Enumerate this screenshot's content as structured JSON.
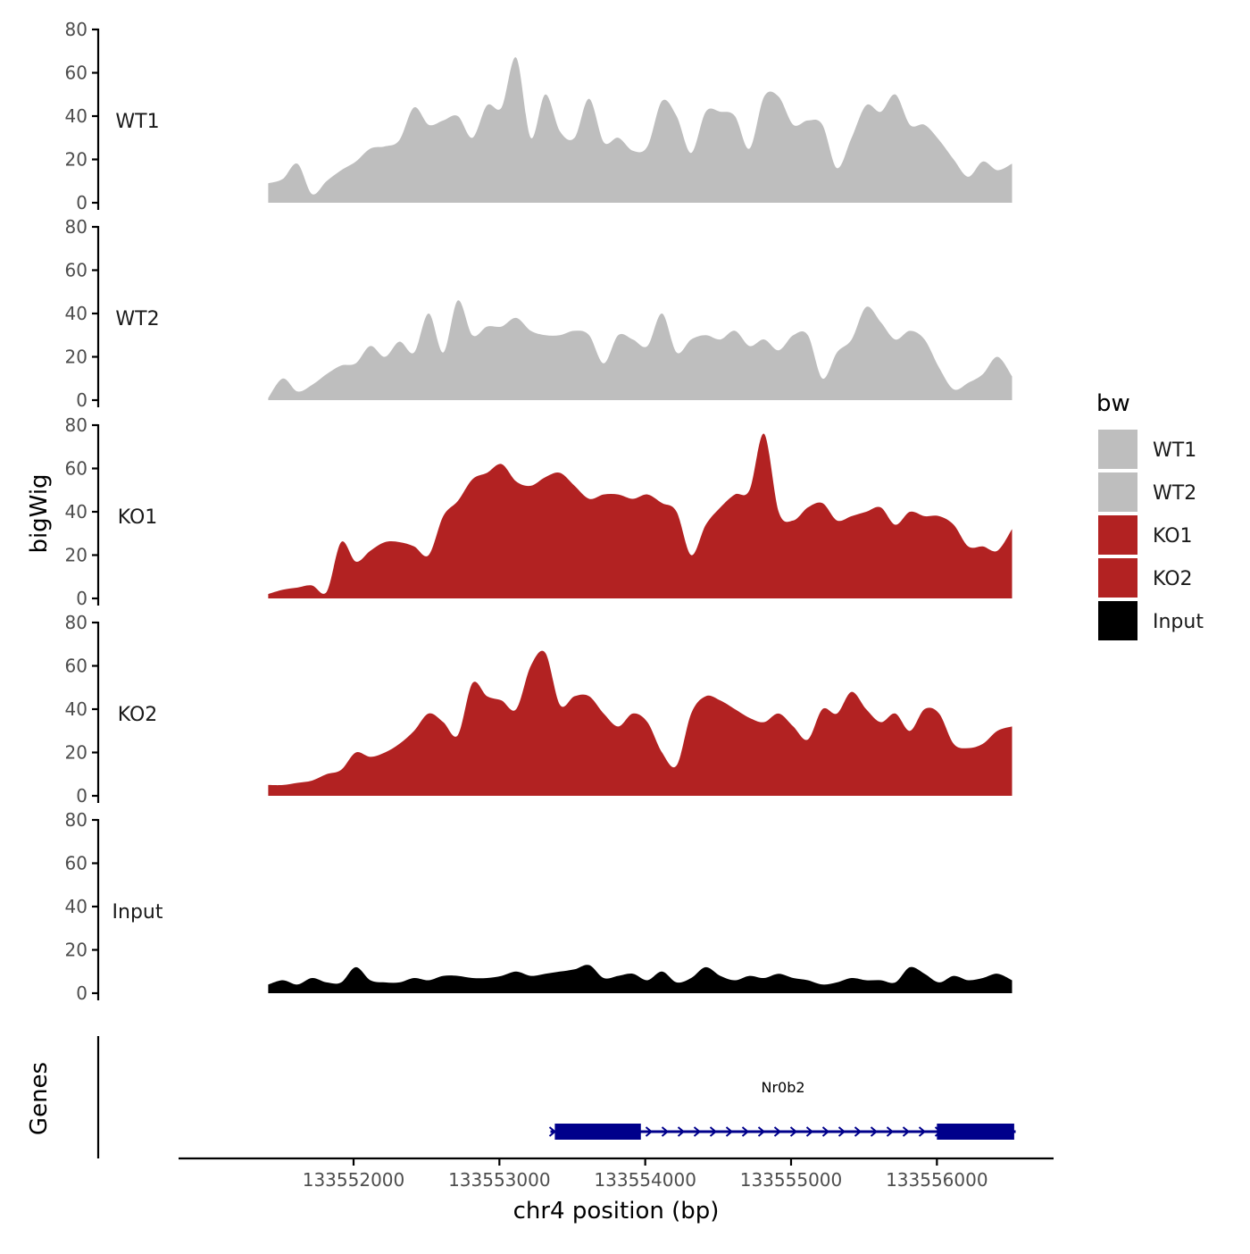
{
  "chart_data": {
    "type": "area",
    "title": "",
    "ylabel": "bigWig",
    "xlabel": "chr4 position (bp)",
    "xlim": [
      133550800,
      133556800
    ],
    "ylim": [
      0,
      80
    ],
    "ytick_labels": [
      "0",
      "20",
      "40",
      "60",
      "80"
    ],
    "xtick_values": [
      133552000,
      133553000,
      133554000,
      133555000,
      133556000
    ],
    "xtick_labels": [
      "133552000",
      "133553000",
      "133554000",
      "133555000",
      "133556000"
    ],
    "legend": {
      "title": "bw",
      "placement": "right",
      "entries": [
        {
          "label": "WT1",
          "color": "#bebebe"
        },
        {
          "label": "WT2",
          "color": "#bebebe"
        },
        {
          "label": "KO1",
          "color": "#b22222"
        },
        {
          "label": "KO2",
          "color": "#b22222"
        },
        {
          "label": "Input",
          "color": "#000000"
        }
      ]
    },
    "x": [
      133551415,
      133551515,
      133551615,
      133551715,
      133551815,
      133551915,
      133552015,
      133552115,
      133552215,
      133552315,
      133552415,
      133552515,
      133552615,
      133552715,
      133552815,
      133552915,
      133553015,
      133553115,
      133553215,
      133553315,
      133553415,
      133553515,
      133553615,
      133553715,
      133553815,
      133553915,
      133554015,
      133554115,
      133554215,
      133554315,
      133554415,
      133554515,
      133554615,
      133554715,
      133554815,
      133554915,
      133555015,
      133555115,
      133555215,
      133555315,
      133555415,
      133555515,
      133555615,
      133555715,
      133555815,
      133555915,
      133556015,
      133556115,
      133556215,
      133556315,
      133556415,
      133556515
    ],
    "series": [
      {
        "name": "WT1",
        "color": "#bebebe",
        "values": [
          9,
          11,
          18,
          4,
          10,
          15,
          19,
          25,
          26,
          29,
          44,
          36,
          38,
          40,
          30,
          45,
          44,
          67,
          30,
          50,
          33,
          30,
          48,
          28,
          30,
          24,
          26,
          47,
          40,
          23,
          42,
          42,
          40,
          25,
          49,
          49,
          36,
          38,
          36,
          16,
          30,
          45,
          42,
          50,
          36,
          36,
          29,
          20,
          12,
          19,
          15,
          18
        ]
      },
      {
        "name": "WT2",
        "color": "#bebebe",
        "values": [
          1,
          10,
          4,
          7,
          12,
          16,
          17,
          25,
          20,
          27,
          22,
          40,
          22,
          46,
          30,
          34,
          34,
          38,
          32,
          30,
          30,
          32,
          30,
          17,
          30,
          28,
          25,
          40,
          22,
          28,
          30,
          28,
          32,
          25,
          28,
          23,
          30,
          30,
          10,
          22,
          28,
          43,
          36,
          28,
          32,
          28,
          15,
          5,
          8,
          12,
          20,
          11
        ]
      },
      {
        "name": "KO1",
        "color": "#b22222",
        "values": [
          2,
          4,
          5,
          6,
          3,
          26,
          17,
          22,
          26,
          26,
          24,
          20,
          38,
          45,
          55,
          58,
          62,
          54,
          52,
          56,
          58,
          52,
          46,
          48,
          48,
          46,
          48,
          44,
          40,
          20,
          34,
          42,
          48,
          50,
          76,
          40,
          36,
          42,
          44,
          36,
          38,
          40,
          42,
          34,
          40,
          38,
          38,
          34,
          24,
          24,
          22,
          32
        ]
      },
      {
        "name": "KO2",
        "color": "#b22222",
        "values": [
          5,
          5,
          6,
          7,
          10,
          12,
          20,
          18,
          20,
          24,
          30,
          38,
          34,
          28,
          52,
          46,
          44,
          40,
          60,
          66,
          42,
          46,
          46,
          38,
          32,
          38,
          34,
          20,
          14,
          38,
          46,
          44,
          40,
          36,
          34,
          38,
          32,
          26,
          40,
          38,
          48,
          40,
          34,
          38,
          30,
          40,
          38,
          24,
          22,
          24,
          30,
          32
        ]
      },
      {
        "name": "Input",
        "color": "#000000",
        "values": [
          4,
          6,
          4,
          7,
          5,
          5,
          12,
          6,
          5,
          5,
          7,
          6,
          8,
          8,
          7,
          7,
          8,
          10,
          8,
          9,
          10,
          11,
          13,
          7,
          8,
          9,
          6,
          10,
          5,
          7,
          12,
          8,
          6,
          8,
          7,
          9,
          7,
          6,
          4,
          5,
          7,
          6,
          6,
          5,
          12,
          9,
          5,
          8,
          6,
          7,
          9,
          6
        ]
      }
    ],
    "gene_track": {
      "ylabel": "Genes",
      "gene": "Nr0b2",
      "strand": "+",
      "start": 133553350,
      "end": 133556540,
      "exons": [
        [
          133553380,
          133553970
        ],
        [
          133556000,
          133556530
        ]
      ]
    }
  }
}
